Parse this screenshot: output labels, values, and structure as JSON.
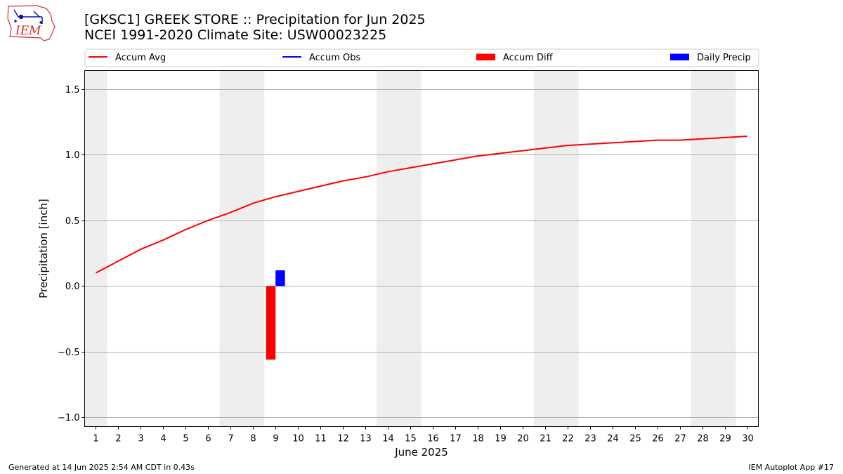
{
  "logo": {
    "text": "IEM"
  },
  "header": {
    "title": "[GKSC1] GREEK STORE :: Precipitation for Jun 2025",
    "subtitle": "NCEI 1991-2020 Climate Site: USW00023225"
  },
  "footer": {
    "left": "Generated at 14 Jun 2025 2:54 AM CDT in 0.43s",
    "right": "IEM Autoplot App #17"
  },
  "chart_data": {
    "type": "line",
    "xlabel": "June 2025",
    "ylabel": "Precipitation [inch]",
    "ylim": [
      -1.07,
      1.64
    ],
    "xlim": [
      0.5,
      30.5
    ],
    "yticks": [
      -1.0,
      -0.5,
      0.0,
      0.5,
      1.0,
      1.5
    ],
    "ytick_labels": [
      "−1.0",
      "−0.5",
      "0.0",
      "0.5",
      "1.0",
      "1.5"
    ],
    "x": [
      1,
      2,
      3,
      4,
      5,
      6,
      7,
      8,
      9,
      10,
      11,
      12,
      13,
      14,
      15,
      16,
      17,
      18,
      19,
      20,
      21,
      22,
      23,
      24,
      25,
      26,
      27,
      28,
      29,
      30
    ],
    "grid": true,
    "legend_position": "top",
    "weekend_shading": [
      [
        0.5,
        1.5
      ],
      [
        6.5,
        8.5
      ],
      [
        13.5,
        15.5
      ],
      [
        20.5,
        22.5
      ],
      [
        27.5,
        29.5
      ]
    ],
    "weekend_color": "#eeeeee",
    "series": [
      {
        "name": "Accum Avg",
        "kind": "line",
        "color": "#ff0000",
        "x": [
          1,
          2,
          3,
          4,
          5,
          6,
          7,
          8,
          9,
          10,
          11,
          12,
          13,
          14,
          15,
          16,
          17,
          18,
          19,
          20,
          21,
          22,
          23,
          24,
          25,
          26,
          27,
          28,
          29,
          30
        ],
        "values": [
          0.1,
          0.19,
          0.28,
          0.35,
          0.43,
          0.5,
          0.56,
          0.63,
          0.68,
          0.72,
          0.76,
          0.8,
          0.83,
          0.87,
          0.9,
          0.93,
          0.96,
          0.99,
          1.01,
          1.03,
          1.05,
          1.07,
          1.08,
          1.09,
          1.1,
          1.11,
          1.11,
          1.12,
          1.13,
          1.14
        ]
      },
      {
        "name": "Accum Obs",
        "kind": "line",
        "color": "#0000ff",
        "x": [],
        "values": []
      },
      {
        "name": "Accum Diff",
        "kind": "bar",
        "color": "#ff0000",
        "x": [
          9
        ],
        "values": [
          -0.56
        ]
      },
      {
        "name": "Daily Precip",
        "kind": "bar",
        "color": "#0000ff",
        "x": [
          9
        ],
        "values": [
          0.12
        ]
      }
    ]
  }
}
